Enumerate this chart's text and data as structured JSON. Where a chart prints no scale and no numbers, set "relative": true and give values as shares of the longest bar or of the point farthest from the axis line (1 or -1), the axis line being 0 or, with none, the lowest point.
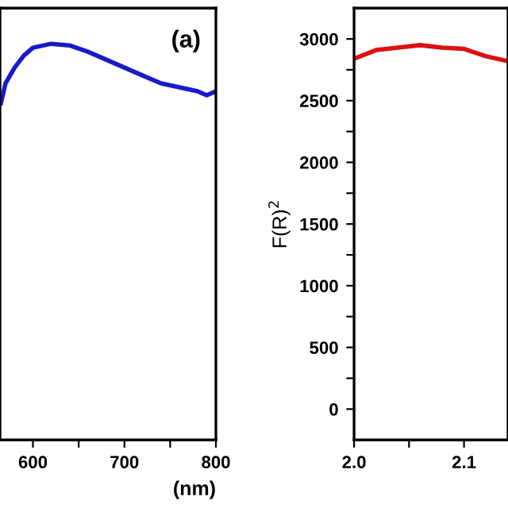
{
  "chart_data": [
    {
      "type": "line",
      "relative": true,
      "xlabel": "(nm)",
      "annotations": [
        "(a)"
      ],
      "xlim": [
        564,
        800
      ],
      "xticks": [
        600,
        {
          "value": 650,
          "label": null
        },
        700,
        {
          "value": 750,
          "label": null
        },
        800
      ],
      "grid": false,
      "legend": false,
      "series": [
        {
          "color": "#1a1ac8",
          "x": [
            565,
            570,
            580,
            590,
            600,
            620,
            640,
            650,
            660,
            680,
            700,
            720,
            740,
            760,
            780,
            790,
            800
          ],
          "values": [
            0.85,
            0.9,
            0.94,
            0.97,
            0.99,
            1.0,
            0.996,
            0.988,
            0.98,
            0.96,
            0.94,
            0.92,
            0.9,
            0.89,
            0.88,
            0.87,
            0.88
          ]
        }
      ]
    },
    {
      "type": "line",
      "ylabel": "F(R)$^{2}$",
      "xlim": [
        2.0,
        2.14
      ],
      "xticks": [
        {
          "value": 2.0,
          "label": "2.0"
        },
        {
          "value": 2.05,
          "label": null
        },
        2.1
      ],
      "ylim": [
        -250,
        3250
      ],
      "yticks": [
        0,
        {
          "value": 250,
          "label": null
        },
        500,
        {
          "value": 750,
          "label": null
        },
        1000,
        {
          "value": 1250,
          "label": null
        },
        1500,
        {
          "value": 1750,
          "label": null
        },
        2000,
        {
          "value": 2250,
          "label": null
        },
        2500,
        {
          "value": 2750,
          "label": null
        },
        3000
      ],
      "grid": false,
      "legend": false,
      "series": [
        {
          "color": "#dd1111",
          "x": [
            2.0,
            2.02,
            2.04,
            2.06,
            2.08,
            2.1,
            2.12,
            2.14
          ],
          "values": [
            2840,
            2910,
            2930,
            2950,
            2930,
            2920,
            2860,
            2820
          ]
        }
      ]
    }
  ]
}
